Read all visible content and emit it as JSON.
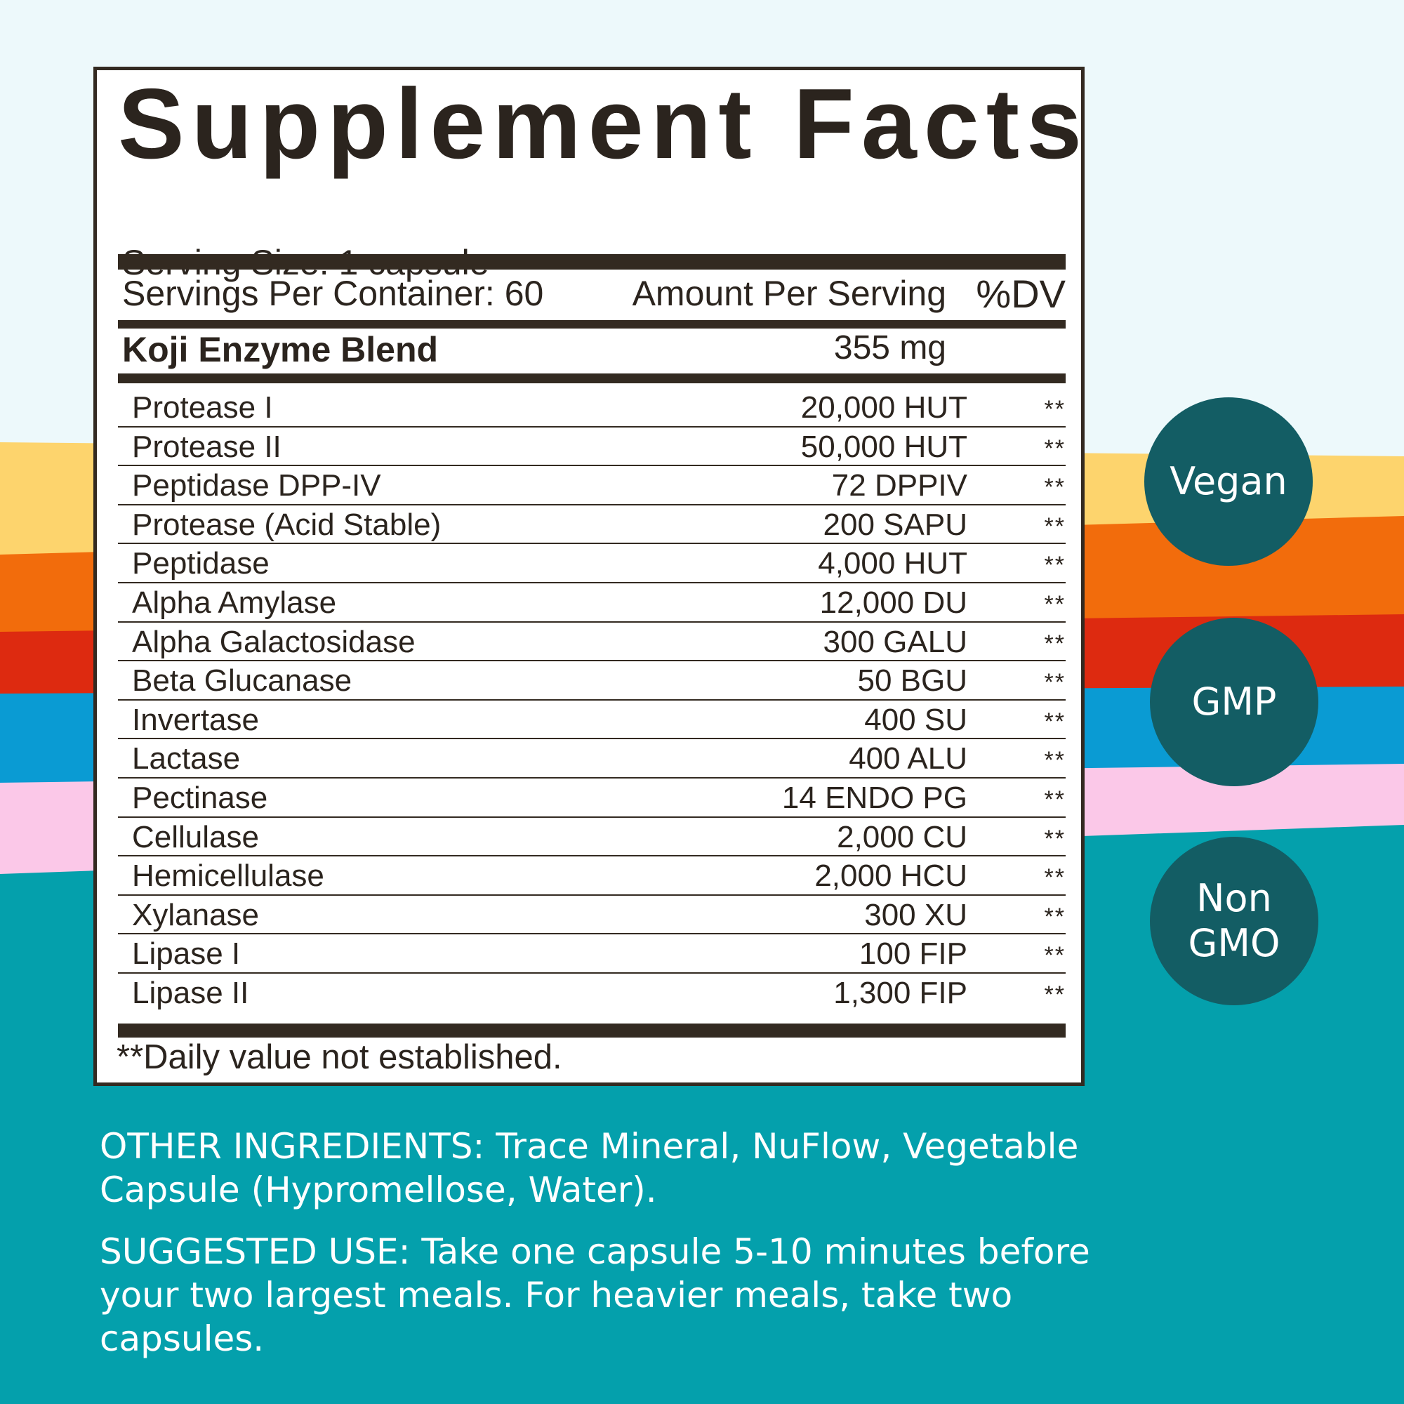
{
  "label": {
    "title": "Supplement Facts",
    "serving_size": "Serving Size: 1 capsule",
    "servings_per_container": "Servings Per Container: 60",
    "amount_header": "Amount Per Serving",
    "dv_header": "%DV",
    "blend": {
      "name": "Koji Enzyme Blend",
      "amount": "355 mg"
    },
    "ingredients": [
      {
        "name": "Protease I",
        "amount": "20,000 HUT",
        "dv": "**"
      },
      {
        "name": "Protease II",
        "amount": "50,000 HUT",
        "dv": "**"
      },
      {
        "name": "Peptidase DPP-IV",
        "amount": "72 DPPIV",
        "dv": "**"
      },
      {
        "name": "Protease (Acid Stable)",
        "amount": "200 SAPU",
        "dv": "**"
      },
      {
        "name": "Peptidase",
        "amount": "4,000 HUT",
        "dv": "**"
      },
      {
        "name": "Alpha Amylase",
        "amount": "12,000 DU",
        "dv": "**"
      },
      {
        "name": "Alpha Galactosidase",
        "amount": "300 GALU",
        "dv": "**"
      },
      {
        "name": "Beta Glucanase",
        "amount": "50 BGU",
        "dv": "**"
      },
      {
        "name": "Invertase",
        "amount": "400 SU",
        "dv": "**"
      },
      {
        "name": "Lactase",
        "amount": "400 ALU",
        "dv": "**"
      },
      {
        "name": "Pectinase",
        "amount": "14 ENDO PG",
        "dv": "**"
      },
      {
        "name": "Cellulase",
        "amount": "2,000 CU",
        "dv": "**"
      },
      {
        "name": "Hemicellulase",
        "amount": "2,000 HCU",
        "dv": "**"
      },
      {
        "name": "Xylanase",
        "amount": "300 XU",
        "dv": "**"
      },
      {
        "name": "Lipase I",
        "amount": "100 FIP",
        "dv": "**"
      },
      {
        "name": "Lipase II",
        "amount": "1,300 FIP",
        "dv": "**"
      }
    ],
    "footnote": "**Daily value not established."
  },
  "other_ingredients": "OTHER INGREDIENTS: Trace Mineral, NuFlow, Vegetable Capsule (Hypromellose, Water).",
  "suggested_use": "SUGGESTED USE: Take one capsule 5-10 minutes before your two largest meals. For heavier meals, take two capsules.",
  "badges": {
    "vegan": "Vegan",
    "gmp": "GMP",
    "non_gmo_line1": "Non",
    "non_gmo_line2": "GMO"
  },
  "colors": {
    "background_top": "#edf9fb",
    "stripe_yellow": "#fdd46d",
    "stripe_orange": "#f26c0c",
    "stripe_red": "#dd2a10",
    "stripe_blue": "#0a9bd3",
    "stripe_pink": "#fbc8e8",
    "background_teal": "#04a0ac",
    "badge": "#135d64",
    "label_ink": "#332a21"
  }
}
